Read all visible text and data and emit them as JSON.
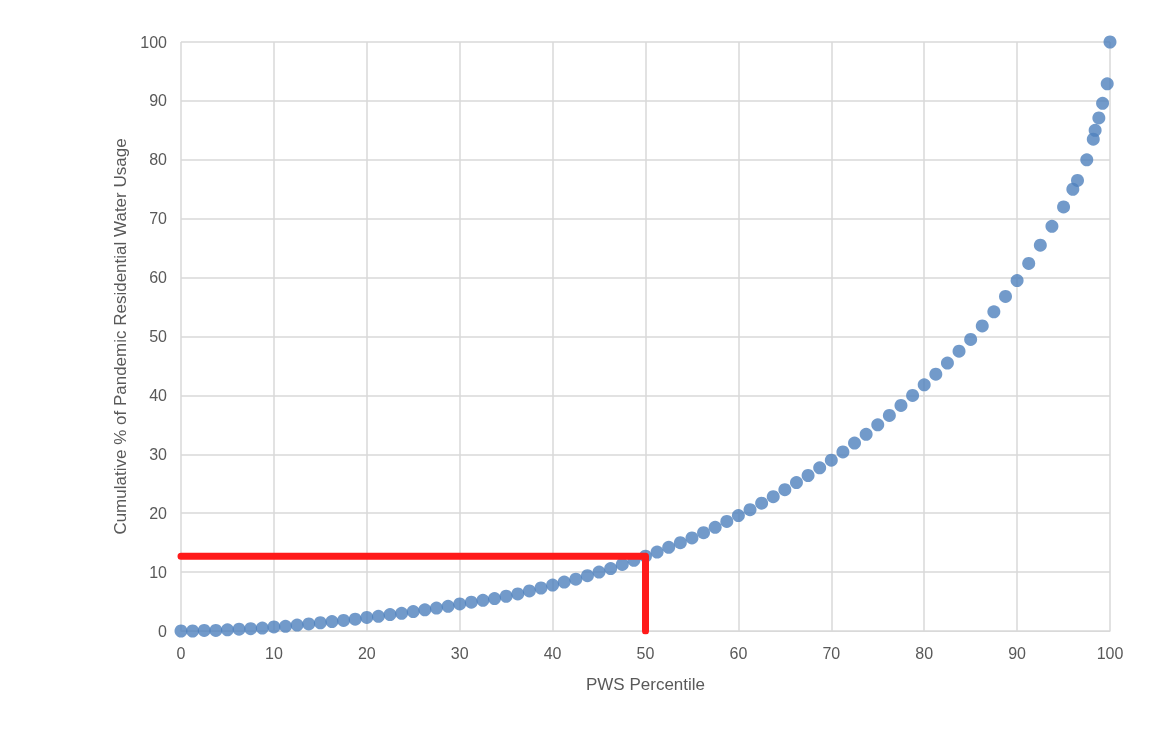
{
  "chart_data": {
    "type": "scatter",
    "xlabel": "PWS Percentile",
    "ylabel": "Cumulative % of Pandemic Residential Water Usage",
    "xlim": [
      0,
      100
    ],
    "xticks": [
      0,
      10,
      20,
      30,
      40,
      50,
      60,
      70,
      80,
      90,
      100
    ],
    "ylim": [
      0,
      100
    ],
    "yticks": [
      0,
      10,
      20,
      30,
      40,
      50,
      60,
      70,
      80,
      90,
      100
    ],
    "grid": true,
    "marker": "circle",
    "series": [
      {
        "color": "#4f81bd",
        "x": [
          0,
          1.25,
          2.5,
          3.75,
          5,
          6.25,
          7.5,
          8.75,
          10,
          11.25,
          12.5,
          13.75,
          15,
          16.25,
          17.5,
          18.75,
          20,
          21.25,
          22.5,
          23.75,
          25,
          26.25,
          27.5,
          28.75,
          30,
          31.25,
          32.5,
          33.75,
          35,
          36.25,
          37.5,
          38.75,
          40,
          41.25,
          42.5,
          43.75,
          45,
          46.25,
          47.5,
          48.75,
          50,
          51.25,
          52.5,
          53.75,
          55,
          56.25,
          57.5,
          58.75,
          60,
          61.25,
          62.5,
          63.75,
          65,
          66.25,
          67.5,
          68.75,
          70,
          71.25,
          72.5,
          73.75,
          75,
          76.25,
          77.5,
          78.75,
          80,
          81.25,
          82.5,
          83.75,
          85,
          86.25,
          87.5,
          88.75,
          90,
          91.25,
          92.5,
          93.75,
          95,
          96,
          96.5,
          97.5,
          98.2,
          98.4,
          98.8,
          99.2,
          99.7,
          100
        ],
        "values": [
          0,
          0,
          0.1,
          0.1,
          0.2,
          0.3,
          0.4,
          0.5,
          0.7,
          0.8,
          1.0,
          1.2,
          1.4,
          1.6,
          1.8,
          2.0,
          2.3,
          2.5,
          2.8,
          3.0,
          3.3,
          3.6,
          3.9,
          4.2,
          4.6,
          4.9,
          5.2,
          5.5,
          5.9,
          6.3,
          6.8,
          7.3,
          7.8,
          8.3,
          8.8,
          9.4,
          10,
          10.6,
          11.3,
          12.0,
          12.7,
          13.4,
          14.2,
          15.0,
          15.8,
          16.7,
          17.6,
          18.6,
          19.6,
          20.6,
          21.7,
          22.8,
          24,
          25.2,
          26.4,
          27.7,
          29,
          30.4,
          31.9,
          33.4,
          35,
          36.6,
          38.3,
          40.0,
          41.8,
          43.6,
          45.5,
          47.5,
          49.5,
          51.8,
          54.2,
          56.8,
          59.5,
          62.4,
          65.5,
          68.7,
          72,
          75,
          76.5,
          80,
          83.5,
          85,
          87.1,
          89.6,
          92.9,
          100
        ]
      },
      {
        "type": "line",
        "color": "#ff1a1a",
        "marker": "none",
        "x": [
          0,
          50,
          50
        ],
        "values": [
          12.7,
          12.7,
          0
        ]
      }
    ]
  }
}
